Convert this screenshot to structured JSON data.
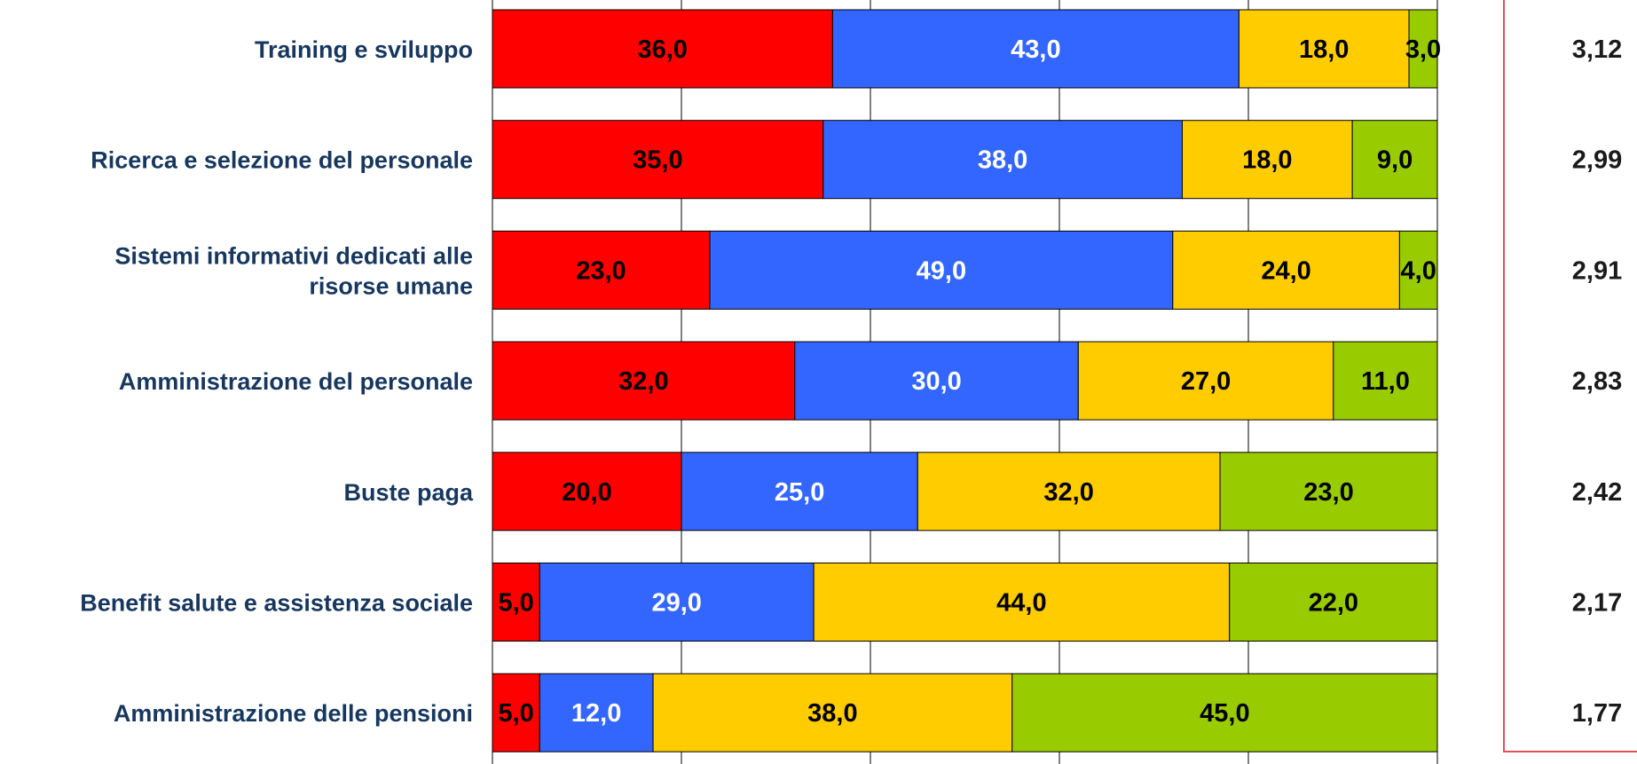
{
  "chart_data": {
    "type": "bar",
    "orientation": "horizontal",
    "stacked": true,
    "xlim": [
      0,
      100
    ],
    "grid": true,
    "categories": [
      [
        "Training e sviluppo"
      ],
      [
        "Ricerca e selezione del personale"
      ],
      [
        "Sistemi informativi dedicati alle",
        "risorse umane"
      ],
      [
        "Amministrazione del personale"
      ],
      [
        "Buste paga"
      ],
      [
        "Benefit salute e assistenza sociale"
      ],
      [
        "Amministrazione delle pensioni"
      ]
    ],
    "series": [
      {
        "values": [
          36,
          35,
          23,
          32,
          20,
          5,
          5
        ],
        "labels": [
          "36,0",
          "35,0",
          "23,0",
          "32,0",
          "20,0",
          "5,0",
          "5,0"
        ]
      },
      {
        "values": [
          43,
          38,
          49,
          30,
          25,
          29,
          12
        ],
        "labels": [
          "43,0",
          "38,0",
          "49,0",
          "30,0",
          "25,0",
          "29,0",
          "12,0"
        ]
      },
      {
        "values": [
          18,
          18,
          24,
          27,
          32,
          44,
          38
        ],
        "labels": [
          "18,0",
          "18,0",
          "24,0",
          "27,0",
          "32,0",
          "44,0",
          "38,0"
        ]
      },
      {
        "values": [
          3,
          9,
          4,
          11,
          23,
          22,
          45
        ],
        "labels": [
          "3,0",
          "9,0",
          "4,0",
          "11,0",
          "23,0",
          "22,0",
          "45,0"
        ]
      }
    ],
    "scores": [
      "3,12",
      "2,99",
      "2,91",
      "2,83",
      "2,42",
      "2,17",
      "1,77"
    ]
  },
  "colors": {
    "series": [
      "#FF0000",
      "#3366FF",
      "#FFCC00",
      "#99CC00"
    ],
    "label_text": [
      "#000000",
      "#FFFFFF",
      "#000000",
      "#000000"
    ],
    "category_text": "#17375E",
    "score_box_border": "#E0505A",
    "grid": "#000000"
  }
}
